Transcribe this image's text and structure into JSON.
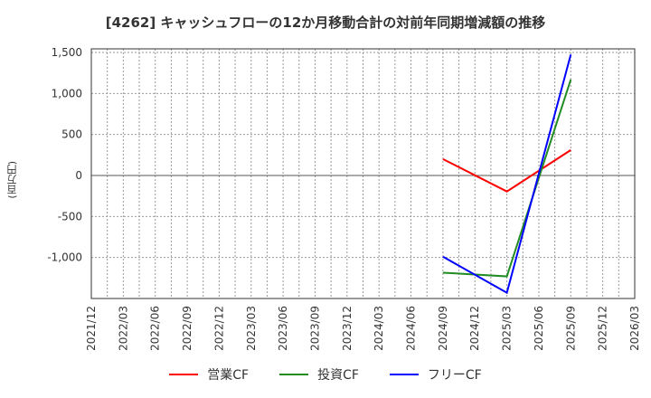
{
  "title": "[4262]  キャッシュフローの12か月移動合計の対前年同期増減額の推移",
  "y_axis_label": "(百万円)",
  "legend": [
    {
      "label": "営業CF",
      "color": "#ff0000"
    },
    {
      "label": "投資CF",
      "color": "#228b22"
    },
    {
      "label": "フリーCF",
      "color": "#0000ff"
    }
  ],
  "chart_data": {
    "type": "line",
    "title": "[4262]  キャッシュフローの12か月移動合計の対前年同期増減額の推移",
    "xlabel": "",
    "ylabel": "(百万円)",
    "ylim": [
      -1500,
      1550
    ],
    "y_ticks": [
      1500,
      1000,
      500,
      0,
      -500,
      -1000
    ],
    "y_tick_labels": [
      "1,500",
      "1,000",
      "500",
      "0",
      "-500",
      "-1,000"
    ],
    "x_tick_labels": [
      "2021/12",
      "2022/03",
      "2022/06",
      "2022/09",
      "2022/12",
      "2023/03",
      "2023/06",
      "2023/09",
      "2023/12",
      "2024/03",
      "2024/06",
      "2024/09",
      "2024/12",
      "2025/03",
      "2025/06",
      "2025/09",
      "2025/12",
      "2026/03"
    ],
    "grid": true,
    "legend_position": "bottom",
    "x": [
      "2024/09",
      "2025/03",
      "2025/09"
    ],
    "series": [
      {
        "name": "営業CF",
        "color": "#ff0000",
        "values": [
          200,
          -195,
          310
        ]
      },
      {
        "name": "投資CF",
        "color": "#228b22",
        "values": [
          -1185,
          -1230,
          1170
        ]
      },
      {
        "name": "フリーCF",
        "color": "#0000ff",
        "values": [
          -990,
          -1430,
          1475
        ]
      }
    ]
  }
}
